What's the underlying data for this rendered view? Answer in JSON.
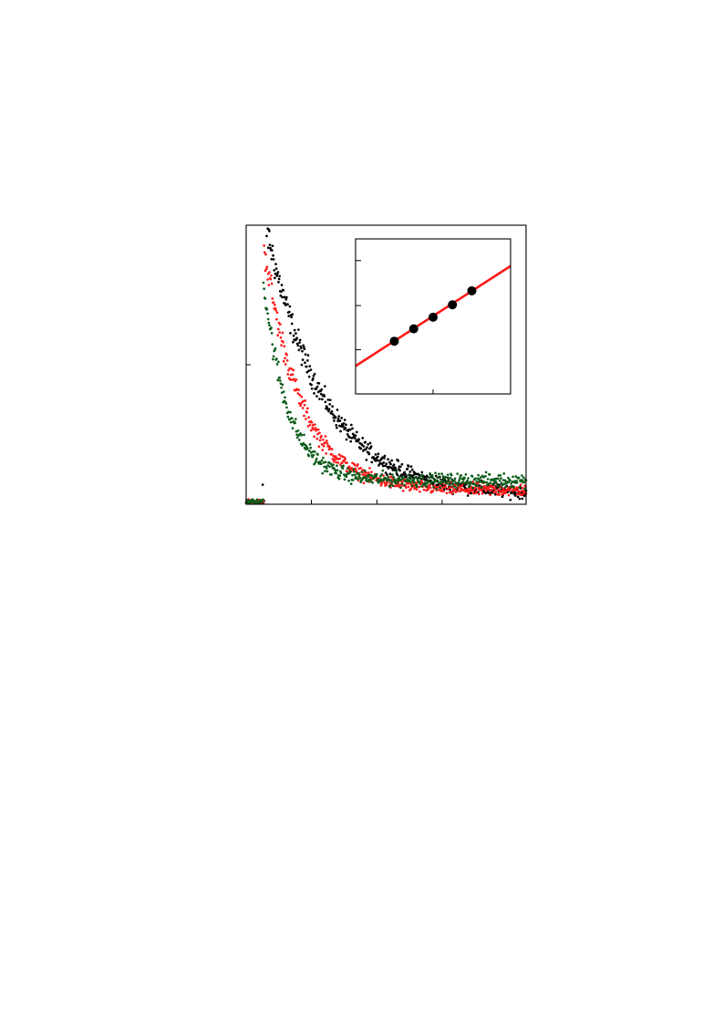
{
  "chart_data": [
    {
      "type": "scatter",
      "title": "",
      "xlabel": "",
      "ylabel": "",
      "xlim": [
        0,
        1
      ],
      "ylim": [
        0,
        1
      ],
      "x_ticks": [
        0.233,
        0.467,
        0.7
      ],
      "y_ticks": [
        0.5,
        1.0
      ],
      "grid": false,
      "legend": "none",
      "series": [
        {
          "color": "#000000",
          "x0": 0.065,
          "peak": 1.03,
          "decay": 0.2,
          "baseline": 0.035,
          "noise": 0.012,
          "n": 520
        },
        {
          "color": "#ff1a1a",
          "x0": 0.062,
          "peak": 0.94,
          "decay": 0.13,
          "baseline": 0.05,
          "noise": 0.011,
          "n": 470
        },
        {
          "color": "#0d5c1a",
          "x0": 0.06,
          "peak": 0.82,
          "decay": 0.085,
          "baseline": 0.085,
          "noise": 0.012,
          "n": 470
        }
      ]
    },
    {
      "type": "scatter",
      "title": "",
      "xlabel": "",
      "ylabel": "",
      "xlim": [
        0,
        1
      ],
      "ylim": [
        0,
        1
      ],
      "x_ticks": [
        0.5
      ],
      "y_ticks": [
        0.285,
        0.57,
        0.86
      ],
      "grid": false,
      "legend": "none",
      "points": [
        {
          "x": 0.25,
          "y": 0.34
        },
        {
          "x": 0.375,
          "y": 0.42
        },
        {
          "x": 0.5,
          "y": 0.495
        },
        {
          "x": 0.625,
          "y": 0.575
        },
        {
          "x": 0.75,
          "y": 0.665
        }
      ],
      "point_color": "#000000",
      "fit": {
        "color": "#ff1a1a",
        "slope": 0.645,
        "intercept": 0.18
      }
    }
  ]
}
